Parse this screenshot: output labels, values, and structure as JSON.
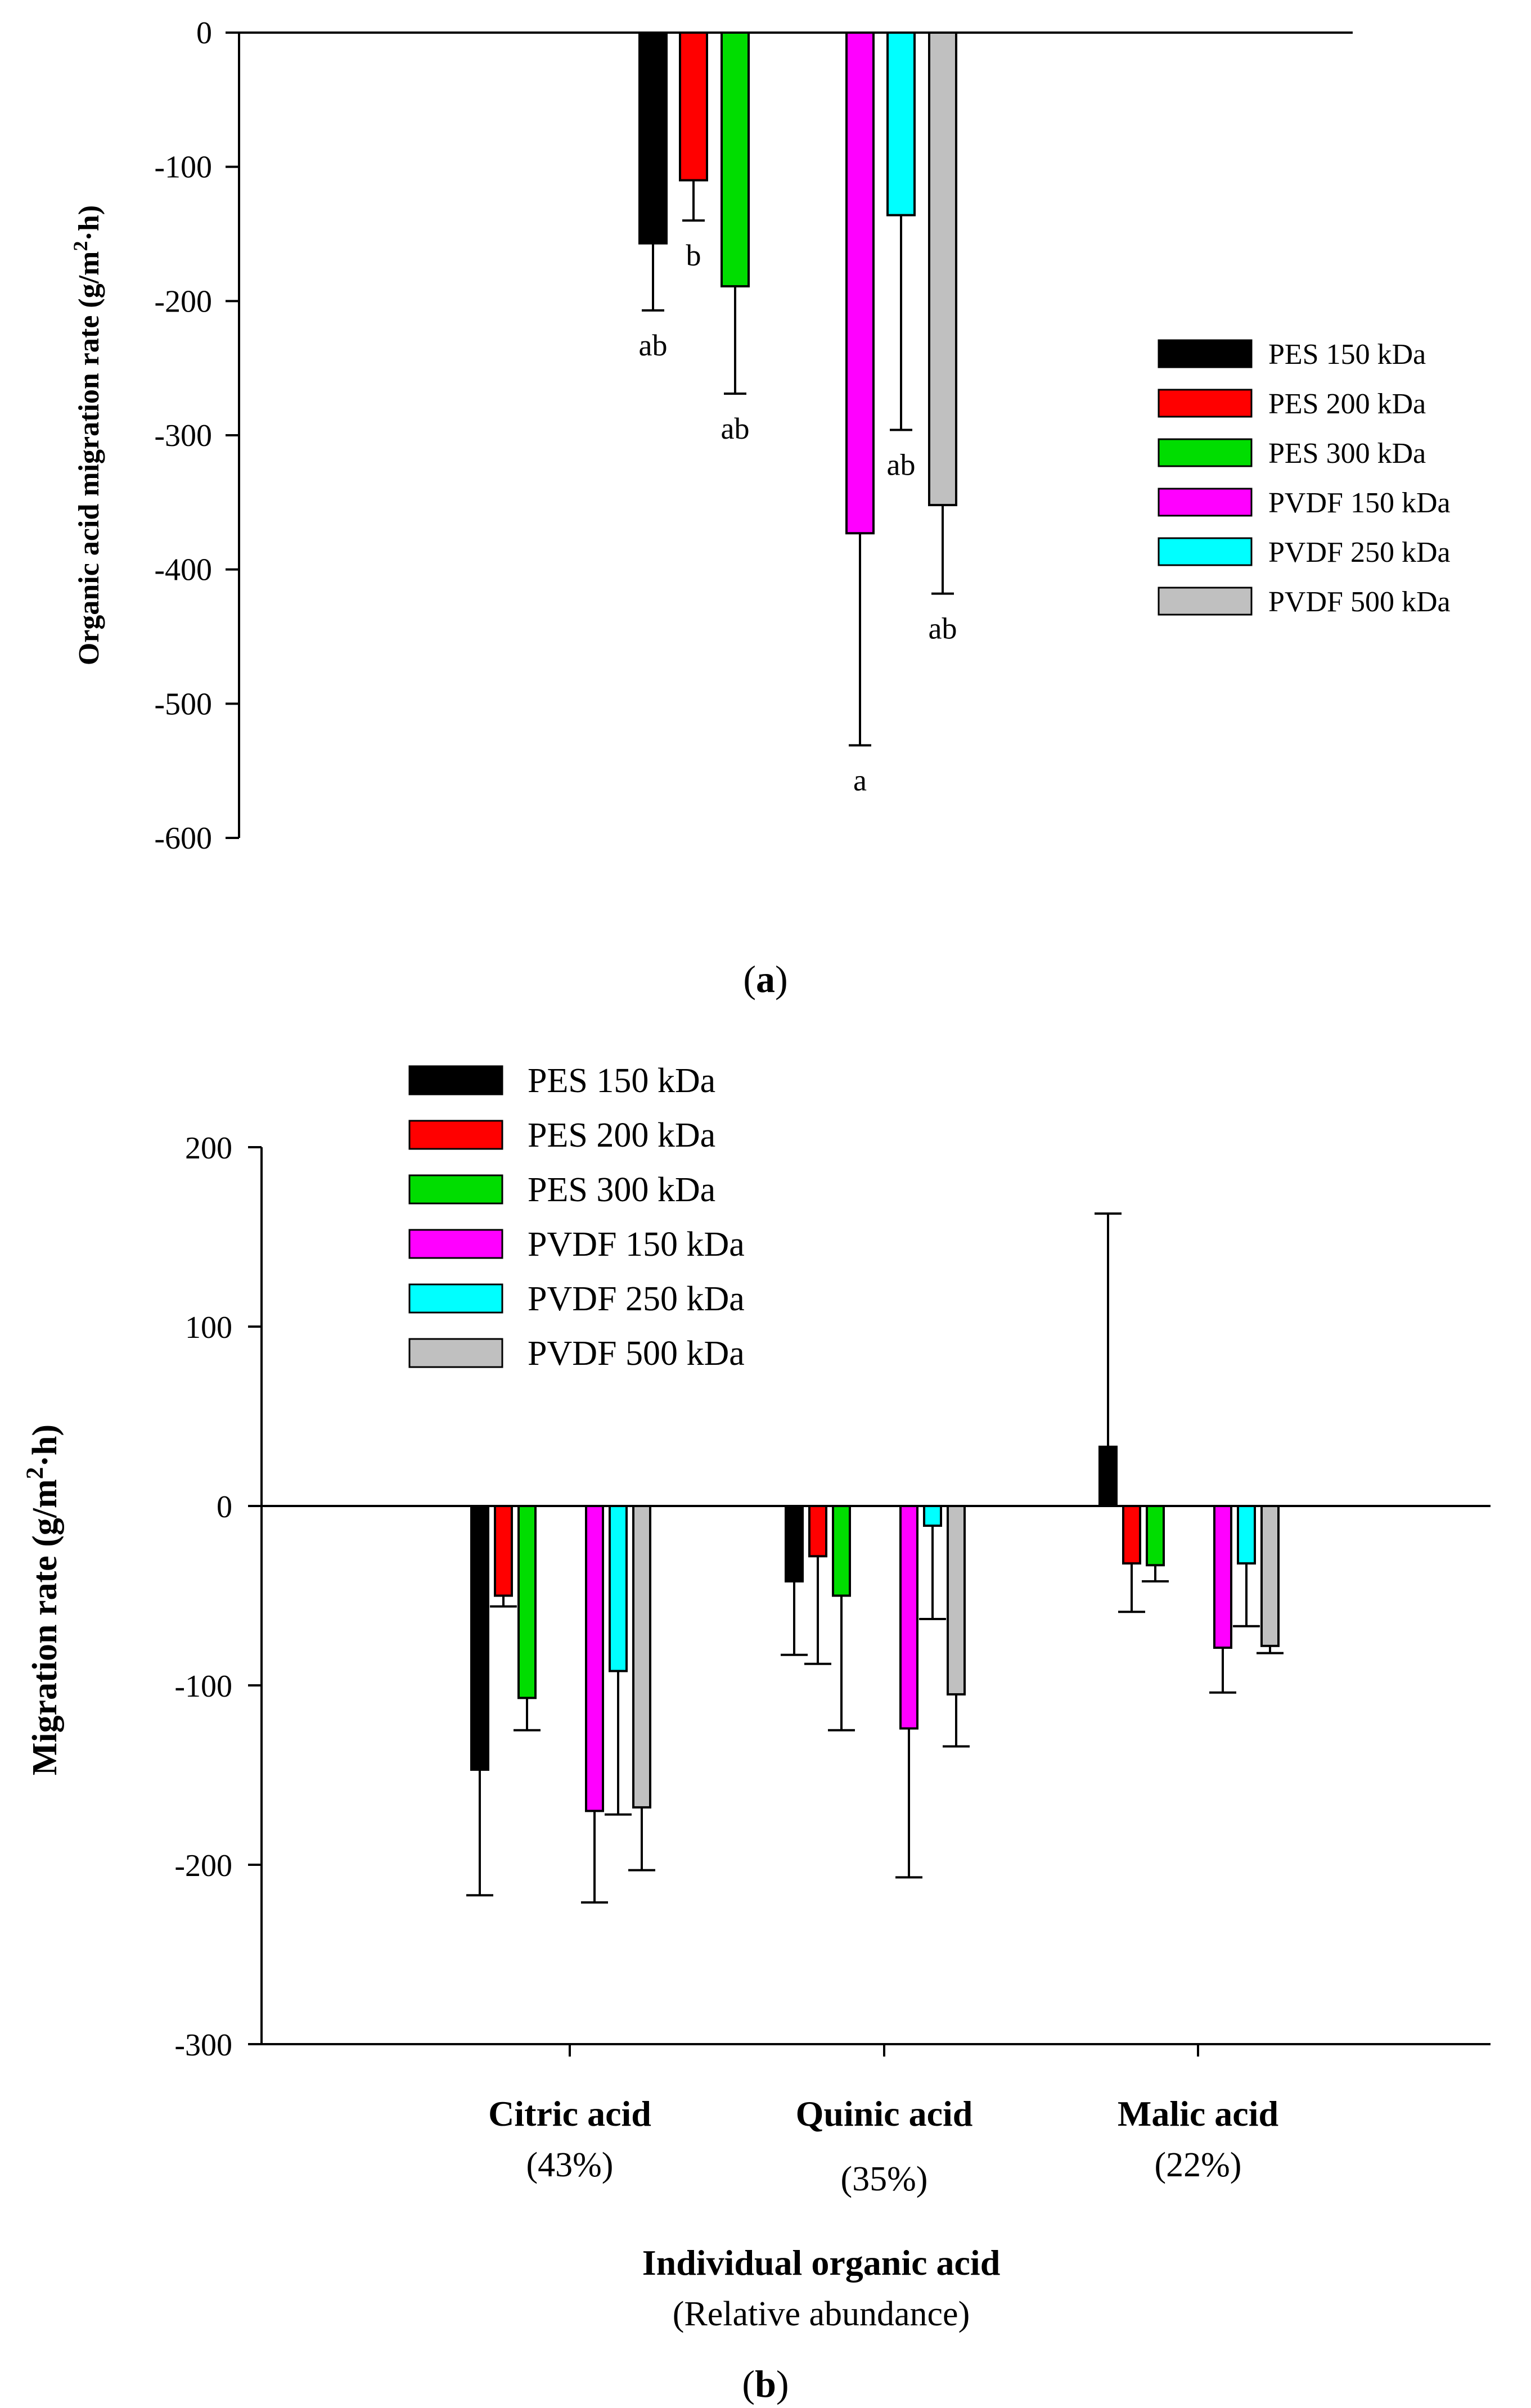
{
  "chart_data": [
    {
      "type": "bar",
      "panel": "a",
      "ylabel": "Organic acid migration rate (g/m²·h)",
      "ylim": [
        -600,
        0
      ],
      "yticks": [
        "0",
        "-100",
        "-200",
        "-300",
        "-400",
        "-500",
        "-600"
      ],
      "legend_position": "right",
      "series": [
        {
          "name": "PES 150 kDa",
          "color": "#000000",
          "value": -157,
          "error": 50,
          "label": "ab"
        },
        {
          "name": "PES 200 kDa",
          "color": "#ff0000",
          "value": -110,
          "error": 30,
          "label": "b"
        },
        {
          "name": "PES 300 kDa",
          "color": "#00dd00",
          "value": -189,
          "error": 80,
          "label": "ab"
        },
        {
          "name": "PVDF 150 kDa",
          "color": "#ff00ff",
          "value": -373,
          "error": 158,
          "label": "a"
        },
        {
          "name": "PVDF 250 kDa",
          "color": "#00ffff",
          "value": -136,
          "error": 160,
          "label": "ab"
        },
        {
          "name": "PVDF 500 kDa",
          "color": "#c0c0c0",
          "value": -352,
          "error": 66,
          "label": "ab"
        }
      ]
    },
    {
      "type": "bar",
      "panel": "b",
      "ylabel": "Migration rate (g/m²·h)",
      "xlabel": "Individual organic acid",
      "xlabel_sub": "(Relative abundance)",
      "ylim": [
        -300,
        200
      ],
      "yticks": [
        "200",
        "100",
        "0",
        "-100",
        "-200",
        "-300"
      ],
      "legend_position": "top-left",
      "categories": [
        {
          "name": "Citric acid",
          "abundance": "(43%)"
        },
        {
          "name": "Quinic acid",
          "abundance": "(35%)"
        },
        {
          "name": "Malic acid",
          "abundance": "(22%)"
        }
      ],
      "series": [
        {
          "name": "PES 150 kDa",
          "color": "#000000",
          "values": [
            -147,
            -42,
            33
          ],
          "errors": [
            70,
            41,
            130
          ]
        },
        {
          "name": "PES 200 kDa",
          "color": "#ff0000",
          "values": [
            -50,
            -28,
            -32
          ],
          "errors": [
            6,
            60,
            27
          ]
        },
        {
          "name": "PES 300 kDa",
          "color": "#00dd00",
          "values": [
            -107,
            -50,
            -33
          ],
          "errors": [
            18,
            75,
            9
          ]
        },
        {
          "name": "PVDF 150 kDa",
          "color": "#ff00ff",
          "values": [
            -170,
            -124,
            -79
          ],
          "errors": [
            51,
            83,
            25
          ]
        },
        {
          "name": "PVDF 250 kDa",
          "color": "#00ffff",
          "values": [
            -92,
            -11,
            -32
          ],
          "errors": [
            80,
            52,
            35
          ]
        },
        {
          "name": "PVDF 500 kDa",
          "color": "#c0c0c0",
          "values": [
            -168,
            -105,
            -78
          ],
          "errors": [
            35,
            29,
            4
          ]
        }
      ]
    }
  ],
  "captions": {
    "a": "a",
    "b": "b"
  }
}
